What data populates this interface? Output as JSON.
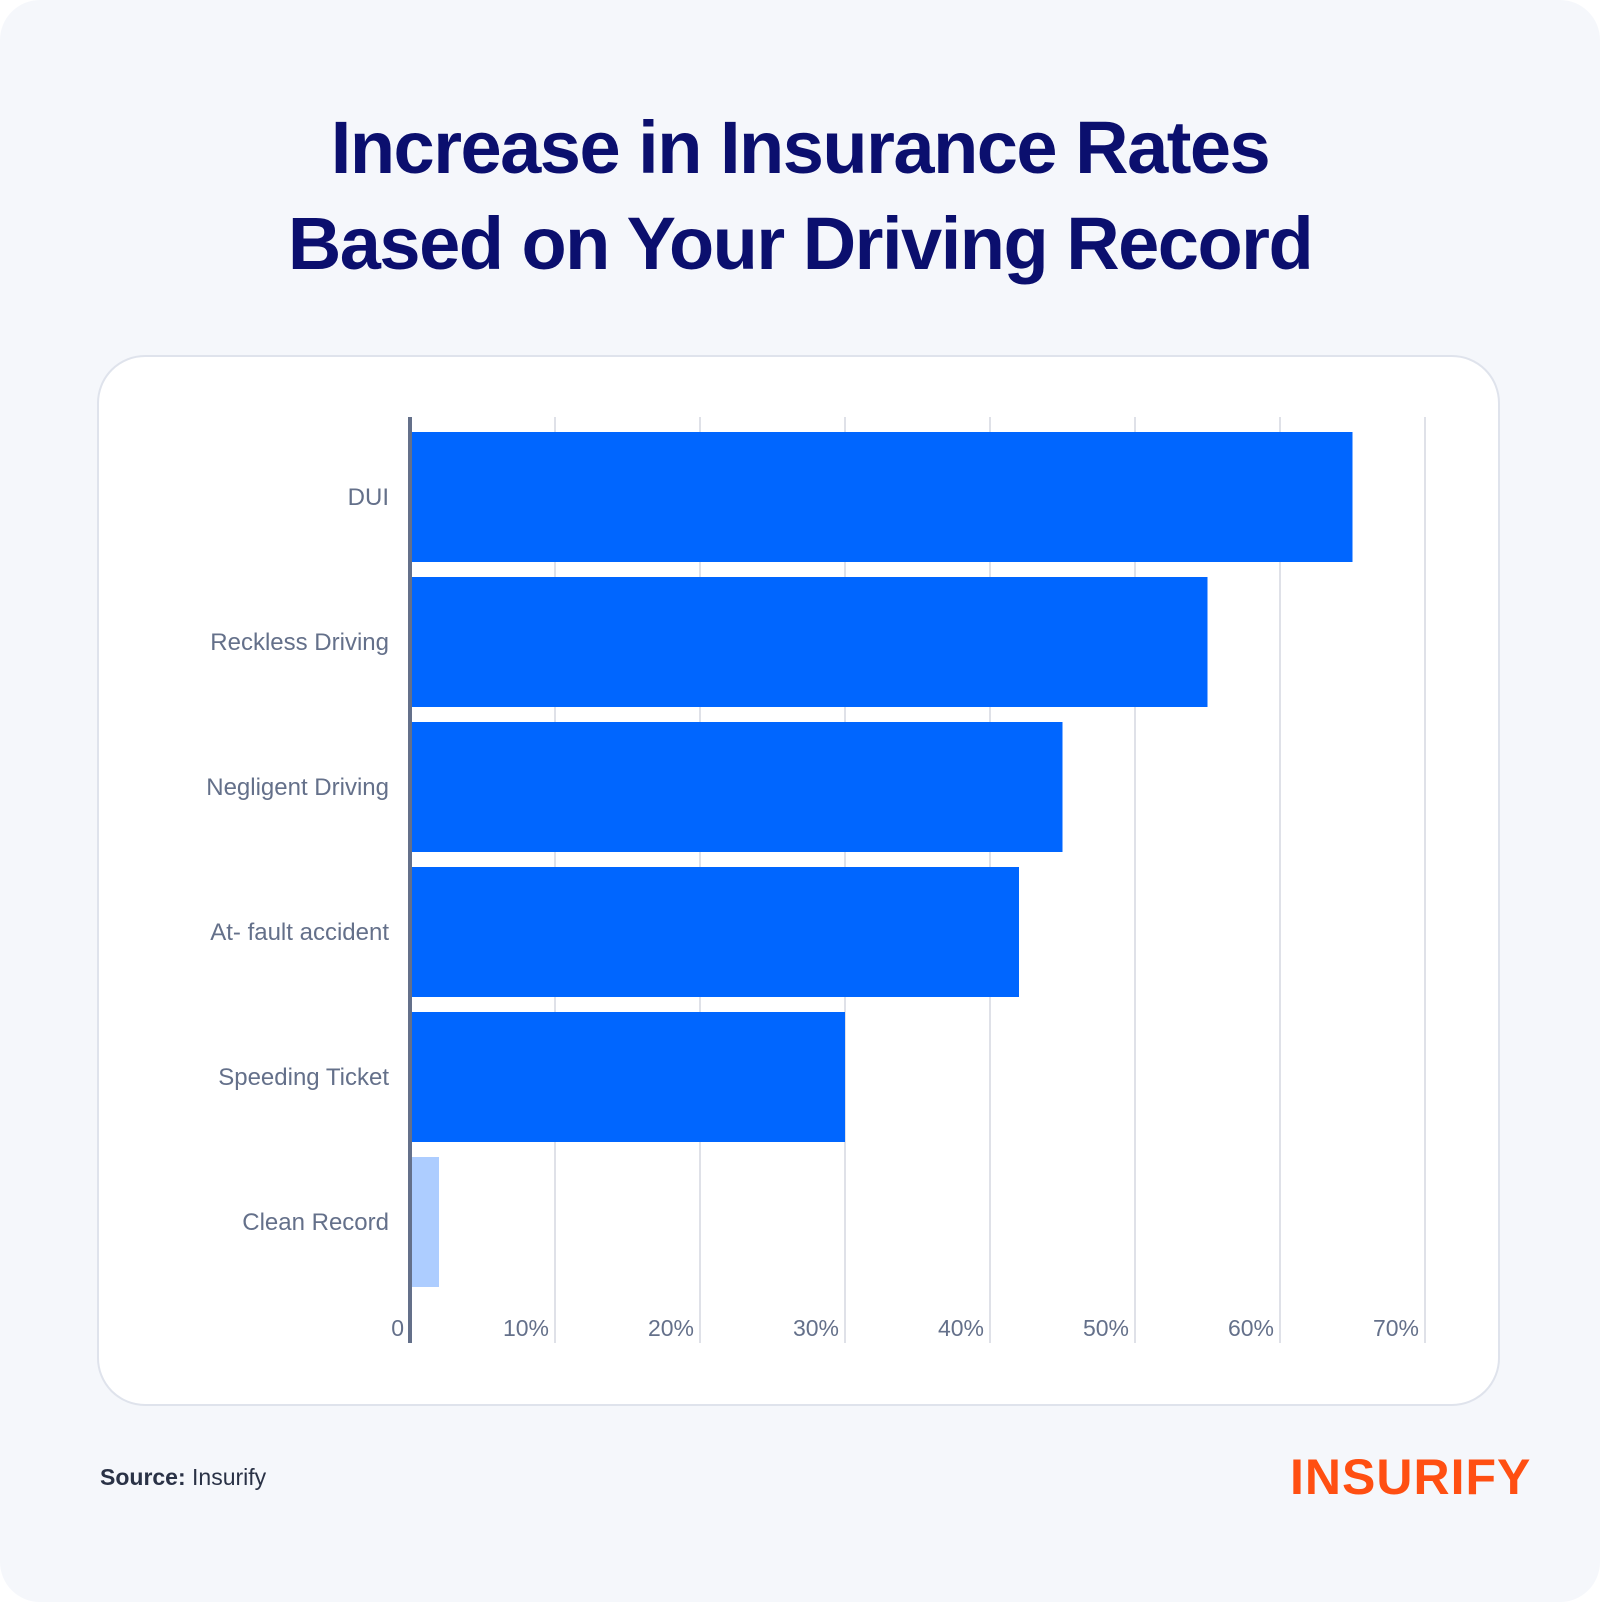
{
  "title_lines": [
    "Increase in Insurance Rates",
    "Based on Your Driving Record"
  ],
  "source": {
    "label": "Source:",
    "value": "Insurify"
  },
  "logo": "INSURIFY",
  "colors": {
    "bar": "#0066ff",
    "bar_light": "#adcdff",
    "title": "#0b0f6e",
    "logo": "#ff4f12",
    "axis": "#64708a",
    "grid": "#dfe1e8"
  },
  "chart_data": {
    "type": "bar",
    "orientation": "horizontal",
    "title": "Increase in Insurance Rates Based on Your Driving Record",
    "categories": [
      "DUI",
      "Reckless Driving",
      "Negligent Driving",
      "At- fault accident",
      "Speeding Ticket",
      "Clean Record"
    ],
    "values": [
      65,
      55,
      45,
      42,
      30,
      2
    ],
    "xlim": [
      0,
      70
    ],
    "xticks": [
      0,
      10,
      20,
      30,
      40,
      50,
      60,
      70
    ],
    "xtick_labels": [
      "0",
      "10%",
      "20%",
      "30%",
      "40%",
      "50%",
      "60%",
      "70%"
    ],
    "grid": true,
    "xlabel": "",
    "ylabel": ""
  }
}
